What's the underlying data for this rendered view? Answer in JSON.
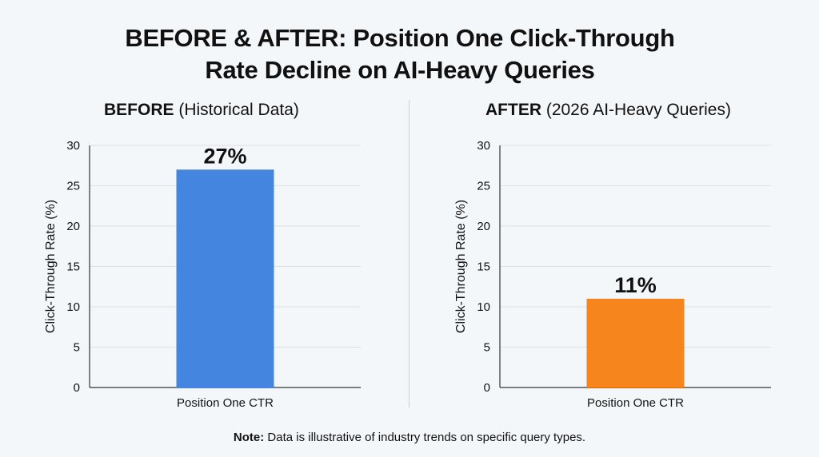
{
  "title_lines": [
    "BEFORE & AFTER: Position One Click-Through",
    "Rate Decline on AI-Heavy Queries"
  ],
  "note": {
    "label": "Note:",
    "text": " Data is illustrative of industry trends on specific query types."
  },
  "chart_data": [
    {
      "type": "bar",
      "title_bold": "BEFORE",
      "title_rest": " (Historical Data)",
      "categories": [
        "Position One CTR"
      ],
      "values": [
        27
      ],
      "data_labels": [
        "27%"
      ],
      "ylabel": "Click-Through Rate (%)",
      "ylim": [
        0,
        30
      ],
      "yticks": [
        0,
        5,
        10,
        15,
        20,
        25,
        30
      ],
      "grid": true,
      "color": "#4485e0"
    },
    {
      "type": "bar",
      "title_bold": "AFTER",
      "title_rest": " (2026 AI-Heavy Queries)",
      "categories": [
        "Position One CTR"
      ],
      "values": [
        11
      ],
      "data_labels": [
        "11%"
      ],
      "ylabel": "Click-Through Rate (%)",
      "ylim": [
        0,
        30
      ],
      "yticks": [
        0,
        5,
        10,
        15,
        20,
        25,
        30
      ],
      "grid": true,
      "color": "#f7851e"
    }
  ]
}
